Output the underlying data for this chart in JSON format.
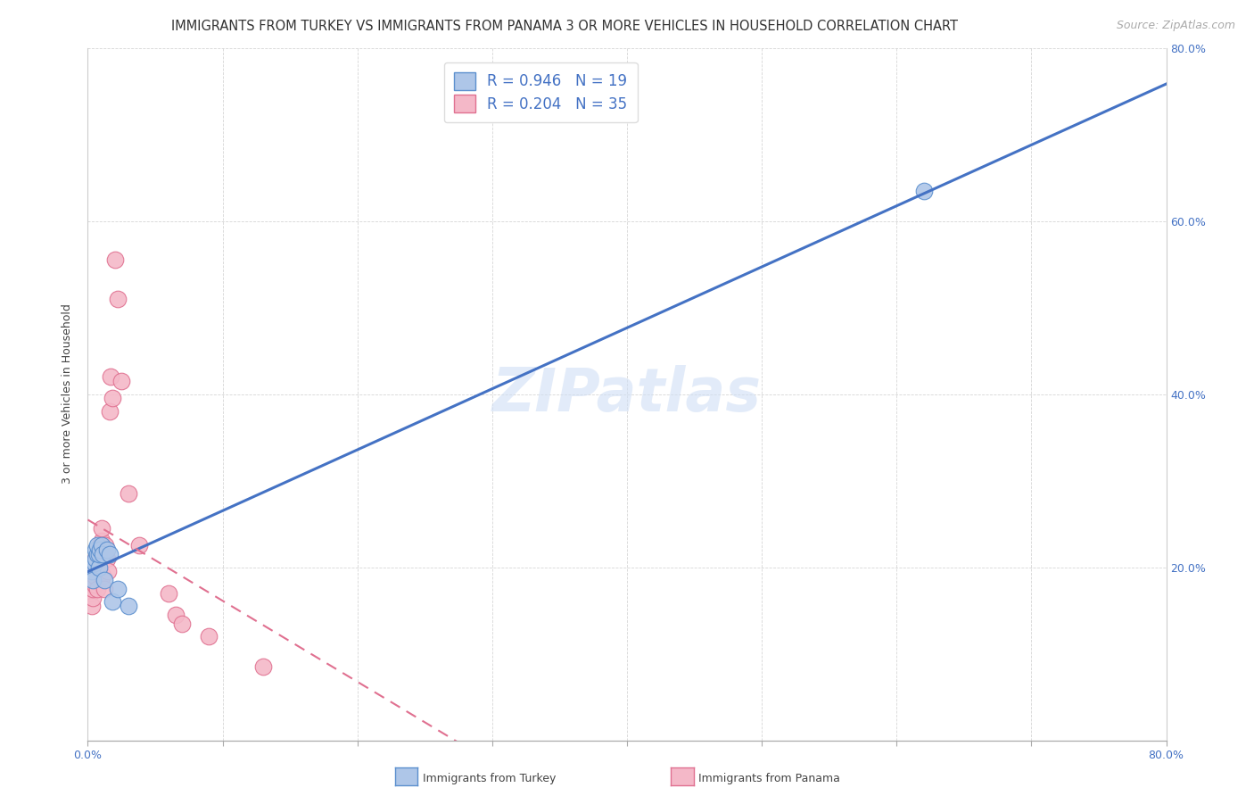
{
  "title": "IMMIGRANTS FROM TURKEY VS IMMIGRANTS FROM PANAMA 3 OR MORE VEHICLES IN HOUSEHOLD CORRELATION CHART",
  "source": "Source: ZipAtlas.com",
  "ylabel": "3 or more Vehicles in Household",
  "watermark": "ZIPatlas",
  "xlim": [
    0.0,
    0.8
  ],
  "ylim": [
    0.0,
    0.8
  ],
  "x_ticks": [
    0.0,
    0.1,
    0.2,
    0.3,
    0.4,
    0.5,
    0.6,
    0.7,
    0.8
  ],
  "y_ticks": [
    0.0,
    0.2,
    0.4,
    0.6,
    0.8
  ],
  "x_tick_labels": [
    "0.0%",
    "",
    "",
    "",
    "",
    "",
    "",
    "",
    "80.0%"
  ],
  "y_tick_labels_left": [
    "",
    "",
    "",
    "",
    ""
  ],
  "y_tick_labels_right": [
    "",
    "20.0%",
    "40.0%",
    "60.0%",
    "80.0%"
  ],
  "turkey_R": 0.946,
  "turkey_N": 19,
  "panama_R": 0.204,
  "panama_N": 35,
  "turkey_color": "#aec6e8",
  "panama_color": "#f4b8c8",
  "turkey_edge_color": "#5b8fce",
  "panama_edge_color": "#e07090",
  "turkey_line_color": "#4472c4",
  "panama_line_color": "#e07090",
  "label_color": "#4472c4",
  "turkey_scatter_x": [
    0.003,
    0.004,
    0.005,
    0.006,
    0.006,
    0.007,
    0.007,
    0.008,
    0.008,
    0.009,
    0.01,
    0.011,
    0.012,
    0.014,
    0.016,
    0.018,
    0.022,
    0.03,
    0.62
  ],
  "turkey_scatter_y": [
    0.195,
    0.185,
    0.205,
    0.21,
    0.22,
    0.215,
    0.225,
    0.2,
    0.215,
    0.22,
    0.225,
    0.215,
    0.185,
    0.22,
    0.215,
    0.16,
    0.175,
    0.155,
    0.635
  ],
  "panama_scatter_x": [
    0.002,
    0.003,
    0.004,
    0.004,
    0.005,
    0.005,
    0.006,
    0.006,
    0.007,
    0.007,
    0.008,
    0.008,
    0.009,
    0.009,
    0.01,
    0.01,
    0.011,
    0.012,
    0.013,
    0.013,
    0.014,
    0.015,
    0.016,
    0.017,
    0.018,
    0.02,
    0.022,
    0.025,
    0.03,
    0.038,
    0.06,
    0.065,
    0.07,
    0.09,
    0.13
  ],
  "panama_scatter_y": [
    0.17,
    0.155,
    0.165,
    0.175,
    0.18,
    0.19,
    0.2,
    0.21,
    0.175,
    0.195,
    0.195,
    0.21,
    0.215,
    0.225,
    0.23,
    0.245,
    0.19,
    0.175,
    0.215,
    0.225,
    0.21,
    0.195,
    0.38,
    0.42,
    0.395,
    0.555,
    0.51,
    0.415,
    0.285,
    0.225,
    0.17,
    0.145,
    0.135,
    0.12,
    0.085
  ],
  "title_fontsize": 10.5,
  "source_fontsize": 9,
  "axis_fontsize": 9,
  "legend_fontsize": 12
}
